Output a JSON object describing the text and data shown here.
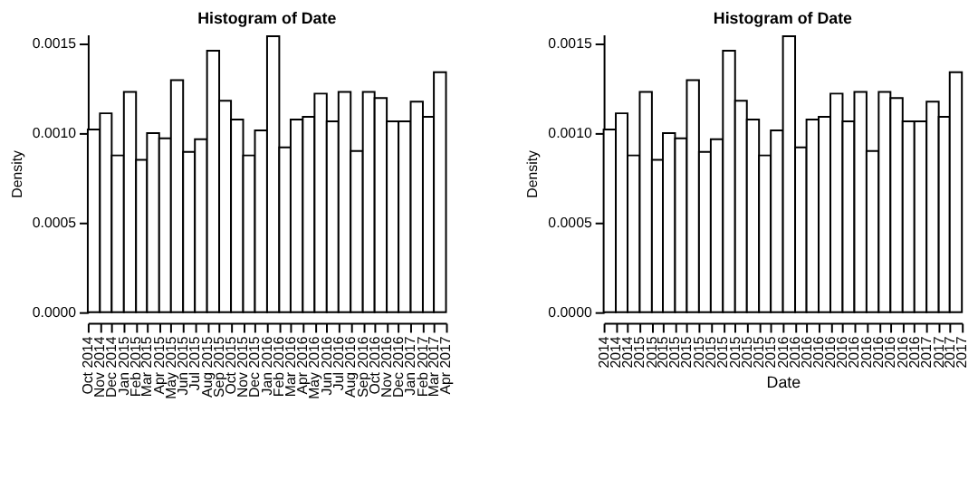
{
  "chart_data": [
    {
      "type": "histogram",
      "title": "Histogram of Date",
      "ylabel": "Density",
      "bins": [
        "2014-10-01",
        "2014-11-01",
        "2014-12-01",
        "2015-01-01",
        "2015-02-01",
        "2015-03-01",
        "2015-04-01",
        "2015-05-01",
        "2015-06-01",
        "2015-07-01",
        "2015-08-01",
        "2015-09-01",
        "2015-10-01",
        "2015-11-01",
        "2015-12-01",
        "2016-01-01",
        "2016-02-01",
        "2016-03-01",
        "2016-04-01",
        "2016-05-01",
        "2016-06-01",
        "2016-07-01",
        "2016-08-01",
        "2016-09-01",
        "2016-10-01",
        "2016-11-01",
        "2016-12-01",
        "2017-01-01",
        "2017-02-01",
        "2017-03-01",
        "2017-04-01"
      ],
      "values": [
        0.00102,
        0.00111,
        0.000875,
        0.00123,
        0.00085,
        0.001,
        0.00097,
        0.001295,
        0.000895,
        0.000965,
        0.00146,
        0.00118,
        0.001075,
        0.000875,
        0.001015,
        0.00154,
        0.00092,
        0.001075,
        0.00109,
        0.00122,
        0.001065,
        0.00123,
        0.0009,
        0.00123,
        0.001195,
        0.001065,
        0.001065,
        0.001175,
        0.00109,
        0.00134
      ],
      "xlim": [
        "2014-10-01",
        "2017-04-01"
      ],
      "xticks": [
        {
          "value": "2014-10-01",
          "label": "Oct 2014"
        },
        {
          "value": "2014-11-01",
          "label": "Nov 2014"
        },
        {
          "value": "2014-12-01",
          "label": "Dec 2014"
        },
        {
          "value": "2015-01-01",
          "label": "Jan 2015"
        },
        {
          "value": "2015-02-01",
          "label": "Feb 2015"
        },
        {
          "value": "2015-03-01",
          "label": "Mar 2015"
        },
        {
          "value": "2015-04-01",
          "label": "Apr 2015"
        },
        {
          "value": "2015-05-01",
          "label": "May 2015"
        },
        {
          "value": "2015-06-01",
          "label": "Jun 2015"
        },
        {
          "value": "2015-07-01",
          "label": "Jul 2015"
        },
        {
          "value": "2015-08-01",
          "label": "Aug 2015"
        },
        {
          "value": "2015-09-01",
          "label": "Sep 2015"
        },
        {
          "value": "2015-10-01",
          "label": "Oct 2015"
        },
        {
          "value": "2015-11-01",
          "label": "Nov 2015"
        },
        {
          "value": "2015-12-01",
          "label": "Dec 2015"
        },
        {
          "value": "2016-01-01",
          "label": "Jan 2016"
        },
        {
          "value": "2016-02-01",
          "label": "Feb 2016"
        },
        {
          "value": "2016-03-01",
          "label": "Mar 2016"
        },
        {
          "value": "2016-04-01",
          "label": "Apr 2016"
        },
        {
          "value": "2016-05-01",
          "label": "May 2016"
        },
        {
          "value": "2016-06-01",
          "label": "Jun 2016"
        },
        {
          "value": "2016-07-01",
          "label": "Jul 2016"
        },
        {
          "value": "2016-08-01",
          "label": "Aug 2016"
        },
        {
          "value": "2016-09-01",
          "label": "Sep 2016"
        },
        {
          "value": "2016-10-01",
          "label": "Oct 2016"
        },
        {
          "value": "2016-11-01",
          "label": "Nov 2016"
        },
        {
          "value": "2016-12-01",
          "label": "Dec 2016"
        },
        {
          "value": "2017-01-01",
          "label": "Jan 2017"
        },
        {
          "value": "2017-02-01",
          "label": "Feb 2017"
        },
        {
          "value": "2017-03-01",
          "label": "Mar 2017"
        },
        {
          "value": "2017-04-01",
          "label": "Apr 2017"
        }
      ],
      "ylim": [
        0,
        0.00155
      ],
      "yticks": [
        {
          "value": 0,
          "label": "0.0000"
        },
        {
          "value": 0.0005,
          "label": "0.0005"
        },
        {
          "value": 0.001,
          "label": "0.0010"
        },
        {
          "value": 0.0015,
          "label": "0.0015"
        }
      ]
    },
    {
      "type": "histogram",
      "title": "Histogram of Date",
      "ylabel": "Density",
      "xlabel": "Date",
      "bins": [
        "2014-10-01",
        "2014-11-01",
        "2014-12-01",
        "2015-01-01",
        "2015-02-01",
        "2015-03-01",
        "2015-04-01",
        "2015-05-01",
        "2015-06-01",
        "2015-07-01",
        "2015-08-01",
        "2015-09-01",
        "2015-10-01",
        "2015-11-01",
        "2015-12-01",
        "2016-01-01",
        "2016-02-01",
        "2016-03-01",
        "2016-04-01",
        "2016-05-01",
        "2016-06-01",
        "2016-07-01",
        "2016-08-01",
        "2016-09-01",
        "2016-10-01",
        "2016-11-01",
        "2016-12-01",
        "2017-01-01",
        "2017-02-01",
        "2017-03-01",
        "2017-04-01"
      ],
      "values": [
        0.00102,
        0.00111,
        0.000875,
        0.00123,
        0.00085,
        0.001,
        0.00097,
        0.001295,
        0.000895,
        0.000965,
        0.00146,
        0.00118,
        0.001075,
        0.000875,
        0.001015,
        0.00154,
        0.00092,
        0.001075,
        0.00109,
        0.00122,
        0.001065,
        0.00123,
        0.0009,
        0.00123,
        0.001195,
        0.001065,
        0.001065,
        0.001175,
        0.00109,
        0.00134
      ],
      "xlim": [
        "2014-10-01",
        "2017-04-01"
      ],
      "xticks": [
        {
          "value": "2014-10-01",
          "label": "2014"
        },
        {
          "value": "2014-11-01",
          "label": "2014"
        },
        {
          "value": "2014-12-01",
          "label": "2014"
        },
        {
          "value": "2015-01-01",
          "label": "2015"
        },
        {
          "value": "2015-02-01",
          "label": "2015"
        },
        {
          "value": "2015-03-01",
          "label": "2015"
        },
        {
          "value": "2015-04-01",
          "label": "2015"
        },
        {
          "value": "2015-05-01",
          "label": "2015"
        },
        {
          "value": "2015-06-01",
          "label": "2015"
        },
        {
          "value": "2015-07-01",
          "label": "2015"
        },
        {
          "value": "2015-08-01",
          "label": "2015"
        },
        {
          "value": "2015-09-01",
          "label": "2015"
        },
        {
          "value": "2015-10-01",
          "label": "2015"
        },
        {
          "value": "2015-11-01",
          "label": "2015"
        },
        {
          "value": "2015-12-01",
          "label": "2015"
        },
        {
          "value": "2016-01-01",
          "label": "2016"
        },
        {
          "value": "2016-02-01",
          "label": "2016"
        },
        {
          "value": "2016-03-01",
          "label": "2016"
        },
        {
          "value": "2016-04-01",
          "label": "2016"
        },
        {
          "value": "2016-05-01",
          "label": "2016"
        },
        {
          "value": "2016-06-01",
          "label": "2016"
        },
        {
          "value": "2016-07-01",
          "label": "2016"
        },
        {
          "value": "2016-08-01",
          "label": "2016"
        },
        {
          "value": "2016-09-01",
          "label": "2016"
        },
        {
          "value": "2016-10-01",
          "label": "2016"
        },
        {
          "value": "2016-11-01",
          "label": "2016"
        },
        {
          "value": "2016-12-01",
          "label": "2016"
        },
        {
          "value": "2017-01-01",
          "label": "2017"
        },
        {
          "value": "2017-02-01",
          "label": "2017"
        },
        {
          "value": "2017-03-01",
          "label": "2017"
        },
        {
          "value": "2017-04-01",
          "label": "2017"
        }
      ],
      "ylim": [
        0,
        0.00155
      ],
      "yticks": [
        {
          "value": 0,
          "label": "0.0000"
        },
        {
          "value": 0.0005,
          "label": "0.0005"
        },
        {
          "value": 0.001,
          "label": "0.0010"
        },
        {
          "value": 0.0015,
          "label": "0.0015"
        }
      ]
    }
  ]
}
